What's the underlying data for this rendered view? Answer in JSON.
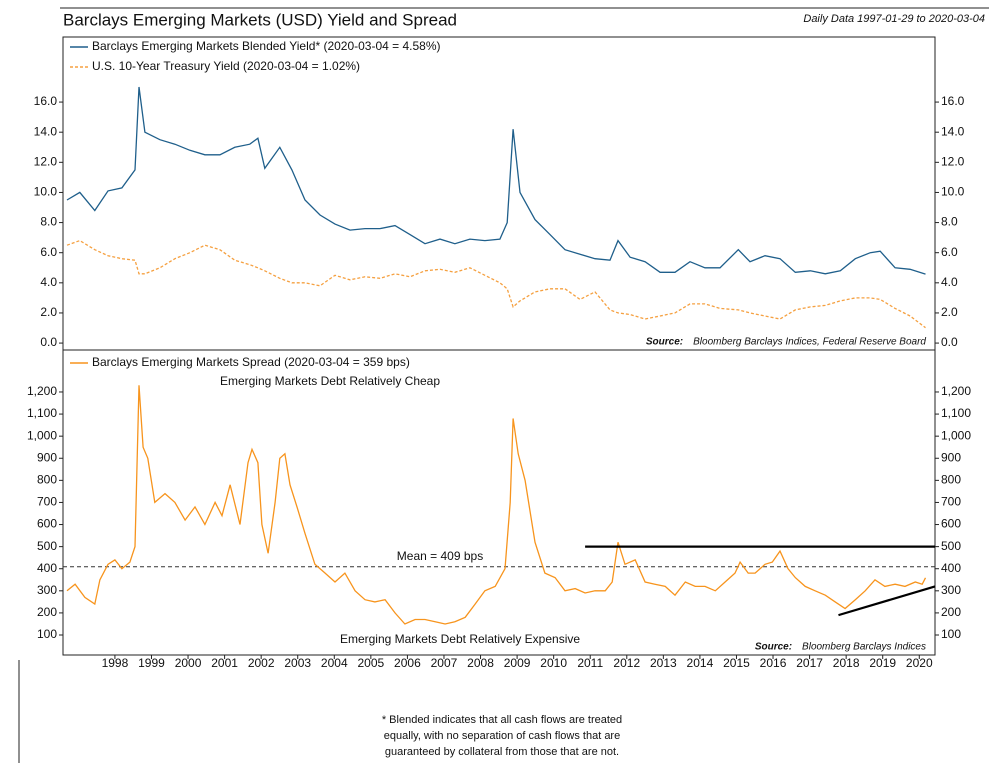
{
  "chart_data": [
    {
      "type": "line",
      "title": "Barclays Emerging Markets (USD) Yield and Spread",
      "subtitle": "Daily Data 1997-01-29 to 2020-03-04",
      "x": [
        1996.69,
        1997.04,
        1997.45,
        1997.81,
        1998.19,
        1998.55,
        1998.66,
        1998.82,
        1999.23,
        1999.64,
        2000.05,
        2000.46,
        2000.87,
        2001.28,
        2001.69,
        2001.91,
        2002.1,
        2002.51,
        2002.84,
        2003.2,
        2003.61,
        2004.02,
        2004.43,
        2004.84,
        2005.25,
        2005.66,
        2006.07,
        2006.48,
        2006.89,
        2007.3,
        2007.71,
        2008.12,
        2008.53,
        2008.73,
        2008.89,
        2009.08,
        2009.49,
        2009.9,
        2010.31,
        2010.72,
        2011.13,
        2011.54,
        2011.76,
        2012.09,
        2012.5,
        2012.91,
        2013.32,
        2013.73,
        2014.14,
        2014.55,
        2015.05,
        2015.37,
        2015.78,
        2016.19,
        2016.61,
        2017.02,
        2017.43,
        2017.84,
        2018.25,
        2018.66,
        2018.93,
        2019.34,
        2019.75,
        2020.17
      ],
      "series": [
        {
          "name": "Barclays Emerging Markets Blended Yield* (2020-03-04 = 4.58%)",
          "color": "#1f5f8b",
          "style": "solid",
          "values": [
            9.5,
            10.0,
            8.8,
            10.1,
            10.3,
            11.5,
            17.0,
            14.0,
            13.5,
            13.2,
            12.8,
            12.5,
            12.5,
            13.0,
            13.2,
            13.6,
            11.6,
            13.0,
            11.5,
            9.5,
            8.5,
            7.9,
            7.5,
            7.6,
            7.6,
            7.8,
            7.2,
            6.6,
            6.9,
            6.6,
            6.9,
            6.8,
            6.9,
            8.0,
            14.2,
            10.0,
            8.2,
            7.2,
            6.2,
            5.9,
            5.6,
            5.5,
            6.8,
            5.7,
            5.4,
            4.7,
            4.7,
            5.4,
            5.0,
            5.0,
            6.2,
            5.4,
            5.8,
            5.6,
            4.7,
            4.8,
            4.6,
            4.8,
            5.6,
            6.0,
            6.1,
            5.0,
            4.9,
            4.58
          ]
        },
        {
          "name": "U.S. 10-Year Treasury Yield (2020-03-04 = 1.02%)",
          "color": "#f5a040",
          "style": "dashed",
          "values": [
            6.5,
            6.8,
            6.2,
            5.8,
            5.6,
            5.5,
            4.6,
            4.6,
            5.0,
            5.6,
            6.0,
            6.5,
            6.2,
            5.5,
            5.2,
            5.0,
            4.8,
            4.3,
            4.0,
            4.0,
            3.8,
            4.5,
            4.2,
            4.4,
            4.3,
            4.6,
            4.4,
            4.8,
            4.9,
            4.7,
            5.0,
            4.5,
            4.0,
            3.6,
            2.4,
            2.8,
            3.4,
            3.6,
            3.6,
            2.9,
            3.4,
            2.2,
            2.0,
            1.9,
            1.6,
            1.8,
            2.0,
            2.6,
            2.6,
            2.3,
            2.2,
            2.0,
            1.8,
            1.6,
            2.2,
            2.4,
            2.5,
            2.8,
            3.0,
            3.0,
            2.9,
            2.3,
            1.8,
            1.02
          ]
        }
      ],
      "xlim": [
        1996.58,
        2020.43
      ],
      "ylim": [
        -0.46,
        20.32
      ],
      "yticks": [
        {
          "value": 0,
          "label": "0.0"
        },
        {
          "value": 2,
          "label": "2.0"
        },
        {
          "value": 4,
          "label": "4.0"
        },
        {
          "value": 6,
          "label": "6.0"
        },
        {
          "value": 8,
          "label": "8.0"
        },
        {
          "value": 10,
          "label": "10.0"
        },
        {
          "value": 12,
          "label": "12.0"
        },
        {
          "value": 14,
          "label": "14.0"
        },
        {
          "value": 16,
          "label": "16.0"
        }
      ],
      "source_label": "Source:",
      "source": "Bloomberg Barclays Indices, Federal Reserve Board"
    },
    {
      "type": "line",
      "x": [
        1996.69,
        1996.91,
        1997.18,
        1997.45,
        1997.59,
        1997.81,
        1998.0,
        1998.19,
        1998.41,
        1998.55,
        1998.66,
        1998.77,
        1998.9,
        1999.09,
        1999.37,
        1999.64,
        1999.92,
        2000.19,
        2000.46,
        2000.74,
        2000.93,
        2001.15,
        2001.42,
        2001.64,
        2001.75,
        2001.91,
        2002.02,
        2002.19,
        2002.38,
        2002.51,
        2002.65,
        2002.79,
        2002.98,
        2003.2,
        2003.47,
        2003.75,
        2004.02,
        2004.29,
        2004.57,
        2004.84,
        2005.11,
        2005.39,
        2005.66,
        2005.93,
        2006.21,
        2006.48,
        2006.76,
        2007.03,
        2007.3,
        2007.58,
        2007.85,
        2008.12,
        2008.4,
        2008.67,
        2008.81,
        2008.89,
        2009.03,
        2009.22,
        2009.49,
        2009.76,
        2010.04,
        2010.31,
        2010.59,
        2010.86,
        2011.13,
        2011.41,
        2011.6,
        2011.76,
        2011.95,
        2012.23,
        2012.5,
        2012.77,
        2013.05,
        2013.32,
        2013.6,
        2013.87,
        2014.14,
        2014.42,
        2014.69,
        2014.96,
        2015.1,
        2015.32,
        2015.51,
        2015.78,
        2015.98,
        2016.19,
        2016.41,
        2016.61,
        2016.88,
        2017.15,
        2017.43,
        2017.7,
        2017.97,
        2018.25,
        2018.52,
        2018.79,
        2019.06,
        2019.34,
        2019.61,
        2019.89,
        2020.08,
        2020.17
      ],
      "series": [
        {
          "name": "Barclays Emerging Markets Spread (2020-03-04 = 359 bps)",
          "color": "#f7941d",
          "style": "solid",
          "values": [
            300,
            330,
            270,
            240,
            350,
            420,
            440,
            400,
            430,
            500,
            1230,
            950,
            900,
            700,
            740,
            700,
            620,
            680,
            600,
            700,
            640,
            780,
            600,
            880,
            940,
            880,
            600,
            470,
            700,
            900,
            920,
            780,
            680,
            560,
            420,
            380,
            340,
            380,
            300,
            260,
            250,
            260,
            200,
            150,
            170,
            170,
            160,
            150,
            160,
            180,
            240,
            300,
            320,
            400,
            700,
            1080,
            920,
            800,
            520,
            380,
            360,
            300,
            310,
            290,
            300,
            300,
            340,
            520,
            420,
            440,
            340,
            330,
            320,
            280,
            340,
            320,
            320,
            300,
            340,
            380,
            430,
            380,
            380,
            420,
            430,
            480,
            400,
            360,
            320,
            300,
            280,
            250,
            220,
            260,
            300,
            350,
            320,
            330,
            320,
            340,
            330,
            359
          ]
        }
      ],
      "xlim": [
        1996.58,
        2020.43
      ],
      "ylim": [
        9.5,
        1390
      ],
      "yticks": [
        100,
        200,
        300,
        400,
        500,
        600,
        700,
        800,
        900,
        {
          "value": 1000,
          "label": "1,000"
        },
        {
          "value": 1100,
          "label": "1,100"
        },
        {
          "value": 1200,
          "label": "1,200"
        }
      ],
      "xticks": [
        1998,
        1999,
        2000,
        2001,
        2002,
        2003,
        2004,
        2005,
        2006,
        2007,
        2008,
        2009,
        2010,
        2011,
        2012,
        2013,
        2014,
        2015,
        2016,
        2017,
        2018,
        2019,
        2020
      ],
      "mean": {
        "label": "Mean = 409 bps",
        "value": 409
      },
      "annotations": [
        "Emerging Markets Debt Relatively Cheap",
        "Emerging Markets Debt Relatively Expensive"
      ],
      "reference_lines": [
        {
          "x": [
            2010.86,
            2020.43
          ],
          "y": [
            500,
            500
          ]
        },
        {
          "x": [
            2017.79,
            2020.43
          ],
          "y": [
            190,
            320
          ]
        }
      ],
      "source_label": "Source:",
      "source": "Bloomberg Barclays Indices"
    }
  ],
  "footnote": [
    "* Blended indicates that all cash flows are treated",
    "equally, with no separation of cash flows that are",
    "guaranteed by collateral from those that are not."
  ]
}
